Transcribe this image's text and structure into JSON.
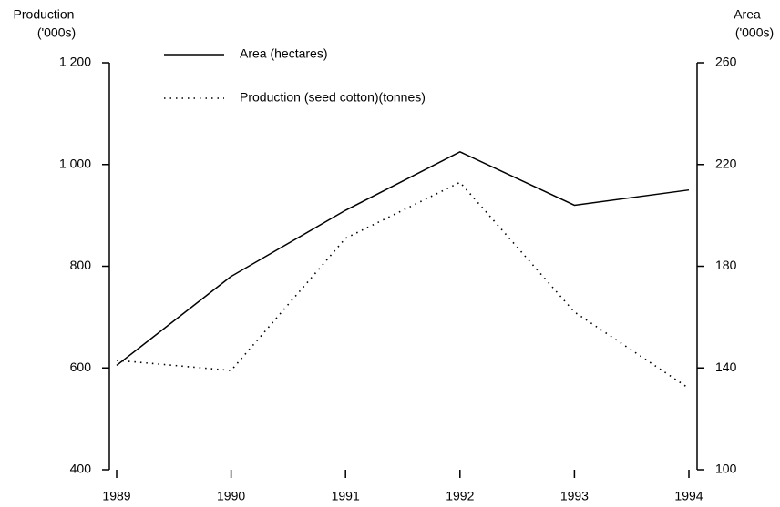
{
  "chart_data": {
    "type": "line",
    "ylabel": [
      "Production",
      "('000s)"
    ],
    "y2label": [
      "Area",
      "('000s)"
    ],
    "x": [
      1989,
      1990,
      1991,
      1992,
      1993,
      1994
    ],
    "xlim": [
      1989,
      1994
    ],
    "xticks": [
      1989,
      1990,
      1991,
      1992,
      1993,
      1994
    ],
    "ylim": [
      400,
      1200
    ],
    "yticks": [
      400,
      600,
      800,
      {
        "value": 1000,
        "label": "1 000"
      },
      {
        "value": 1200,
        "label": "1 200"
      }
    ],
    "y2lim": [
      100,
      260
    ],
    "y2ticks": [
      100,
      140,
      180,
      220,
      260
    ],
    "series": [
      {
        "name": "Area (hectares)",
        "color": "#000000",
        "style": "solid",
        "axis": "y2",
        "values": [
          141,
          176,
          202,
          225,
          204,
          210
        ]
      },
      {
        "name": "Production (seed cotton)(tonnes)",
        "color": "#000000",
        "style": "dotted",
        "axis": "y",
        "values": [
          615,
          595,
          855,
          965,
          710,
          560
        ]
      }
    ]
  }
}
